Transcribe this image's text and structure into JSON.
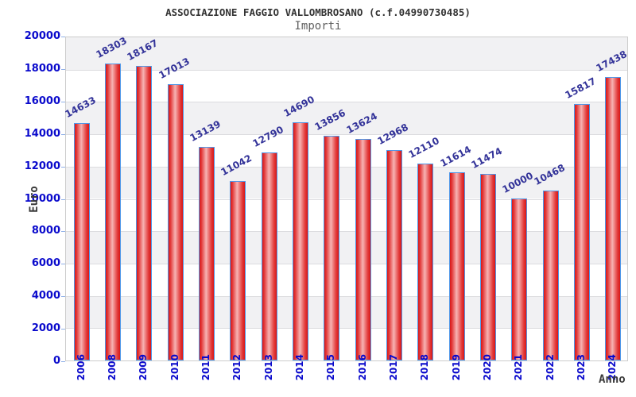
{
  "header": {
    "title": "ASSOCIAZIONE FAGGIO VALLOMBROSANO (c.f.04990730485)",
    "subtitle": "Importi"
  },
  "chart_data": {
    "type": "bar",
    "title": "ASSOCIAZIONE FAGGIO VALLOMBROSANO (c.f.04990730485)",
    "subtitle": "Importi",
    "xlabel": "Anno",
    "ylabel": "Euro",
    "ylim": [
      0,
      20000
    ],
    "ytick_step": 2000,
    "grid": "horizontal gridlines with alternating gray/white bands",
    "legend": "none",
    "categories": [
      "2006",
      "2008",
      "2009",
      "2010",
      "2011",
      "2012",
      "2013",
      "2014",
      "2015",
      "2016",
      "2017",
      "2018",
      "2019",
      "2020",
      "2021",
      "2022",
      "2023",
      "2024"
    ],
    "values": [
      14633,
      18303,
      18167,
      17013,
      13139,
      11042,
      12790,
      14690,
      13856,
      13624,
      12968,
      12110,
      11614,
      11474,
      10000,
      10468,
      15817,
      17438
    ],
    "colors": {
      "bar_fill_edge": "#d81717",
      "bar_fill_center": "#f7b3b3",
      "bar_border": "#4f97e8",
      "value_label": "#333399",
      "tick_label": "#0a0acc",
      "tick_mark": "#8fb0e8",
      "band_gray": "#f1f1f3",
      "band_white": "#ffffff",
      "gridline": "#dcdcdf",
      "plot_border": "#cccccc",
      "title_color": "#333333",
      "subtitle_color": "#5f5f5f",
      "axis_label_color": "#3a3a3a"
    }
  }
}
